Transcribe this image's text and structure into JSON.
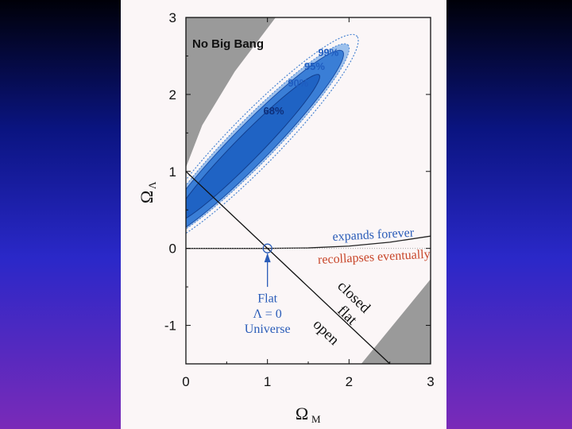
{
  "colors": {
    "background_top": "#000008",
    "background_bottom": "#7a2ab8",
    "paper": "#fbf6f7",
    "region_gray": "#9a9a9a",
    "contour_68": "#1f63c4",
    "contour_90": "#3a7ed6",
    "contour_95": "#9cc0ec",
    "contour_dotted": "#4a84d2",
    "blue_text": "#2a5cb8",
    "red_text": "#c8462a"
  },
  "chart_data": {
    "type": "scatter",
    "xlabel": "Ω",
    "xlabel_sub": "M",
    "ylabel": "Ω",
    "ylabel_sub": "Λ",
    "xlim": [
      0,
      3
    ],
    "ylim": [
      -1.5,
      3
    ],
    "x_ticks": [
      "0",
      "1",
      "2",
      "3"
    ],
    "y_ticks": [
      "-1",
      "0",
      "1",
      "2",
      "3"
    ],
    "grid": false,
    "regions": {
      "no_big_bang": "No Big Bang",
      "no_big_bang_boundary": [
        [
          0,
          1.05
        ],
        [
          0.2,
          1.6
        ],
        [
          0.6,
          2.3
        ],
        [
          1.1,
          3.0
        ]
      ],
      "lower_right_shaded_boundary": [
        [
          2.15,
          -1.5
        ],
        [
          3,
          -0.4
        ]
      ]
    },
    "contours": [
      {
        "level": "68%",
        "center": [
          0.75,
          1.3
        ],
        "major": 1.3,
        "minor": 0.2,
        "angle_deg": 47
      },
      {
        "level": "90%",
        "center": [
          0.8,
          1.35
        ],
        "major": 1.65,
        "minor": 0.3,
        "angle_deg": 47
      },
      {
        "level": "95%",
        "center": [
          0.82,
          1.38
        ],
        "major": 1.72,
        "minor": 0.34,
        "angle_deg": 47
      },
      {
        "level": "99%",
        "center": [
          0.84,
          1.4
        ],
        "major": 1.85,
        "minor": 0.4,
        "angle_deg": 47
      }
    ],
    "flat_line": {
      "from": [
        0,
        1
      ],
      "to": [
        2.5,
        -1.5
      ]
    },
    "expansion_boundary": [
      [
        0,
        0
      ],
      [
        1,
        0
      ],
      [
        1.5,
        0.006
      ],
      [
        2,
        0.03
      ],
      [
        2.5,
        0.08
      ],
      [
        3,
        0.16
      ]
    ],
    "marker": {
      "x": 1,
      "y": 0
    },
    "annotations": {
      "flat_label": "Flat",
      "lambda_label": "Λ = 0",
      "universe_label": "Universe",
      "expands": "expands forever",
      "recollapses": "recollapses eventually",
      "closed": "closed",
      "flat": "flat",
      "open": "open"
    }
  }
}
